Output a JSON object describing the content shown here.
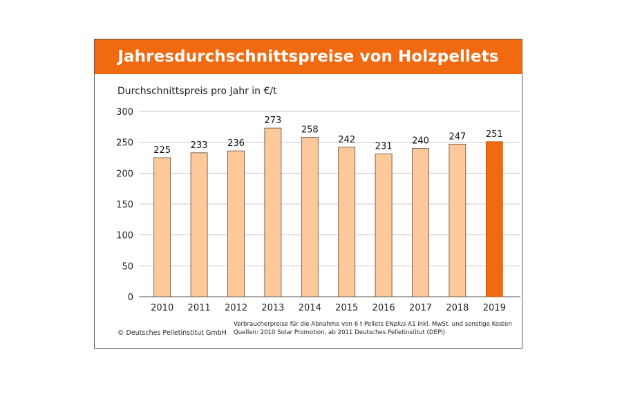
{
  "chart_data": {
    "type": "bar",
    "title": "Jahresdurchschnittspreise von Holzpellets",
    "subtitle": "Durchschnittspreis pro Jahr in €/t",
    "categories": [
      "2010",
      "2011",
      "2012",
      "2013",
      "2014",
      "2015",
      "2016",
      "2017",
      "2018",
      "2019"
    ],
    "series": [
      {
        "values": [
          225,
          233,
          236,
          273,
          258,
          242,
          231,
          240,
          247,
          251
        ]
      }
    ],
    "data_labels": [
      "225",
      "233",
      "236",
      "273",
      "258",
      "242",
      "231",
      "240",
      "247",
      "251"
    ],
    "ylim": [
      0,
      300
    ],
    "yticks": [
      0,
      50,
      100,
      150,
      200,
      250,
      300
    ],
    "ytick_labels": [
      "0",
      "50",
      "100",
      "150",
      "200",
      "250",
      "300"
    ],
    "grid": true,
    "highlight_category": "2019",
    "colors": {
      "bar": "#fdc99a",
      "bar_highlight": "#f26a10",
      "bar_outline": "#5a4a3a",
      "banner": "#f26a10",
      "grid": "#c8c8c8"
    }
  },
  "footer": {
    "copyright": "© Deutsches Pelletinstitut GmbH",
    "note_prefix": "Verbraucherpreise für die Abnahme von 6 t Pellets EN",
    "note_italic": "plus",
    "note_suffix": " A1 inkl. MwSt. und sonstige Kosten",
    "sources": "Quellen: 2010 Solar Promotion, ab 2011 Deutsches Pelletinstitut (DEPI)"
  }
}
